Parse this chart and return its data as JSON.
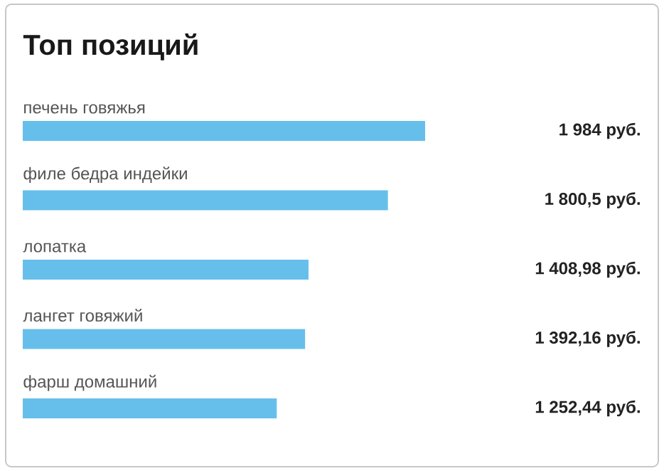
{
  "chart_data": {
    "type": "bar",
    "orientation": "horizontal",
    "title": "Топ позиций",
    "categories": [
      "печень говяжья",
      "филе бедра индейки",
      "лопатка",
      "лангет говяжий",
      "фарш домашний"
    ],
    "values": [
      1984,
      1800.5,
      1408.98,
      1392.16,
      1252.44
    ],
    "value_labels": [
      "1 984 руб.",
      "1 800,5 руб.",
      "1 408,98 руб.",
      "1 392,16 руб.",
      "1 252,44 руб."
    ],
    "color": "#66bfea"
  }
}
